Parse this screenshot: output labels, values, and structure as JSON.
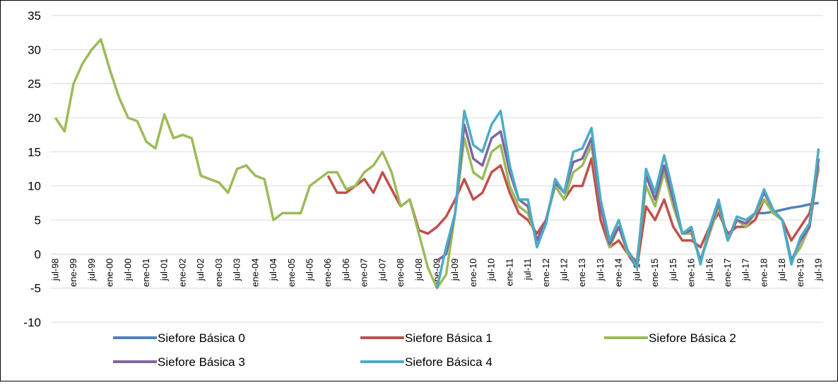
{
  "chart_data": {
    "type": "line",
    "categories": [
      "jul-98",
      null,
      "ene-99",
      null,
      "jul-99",
      null,
      "ene-00",
      null,
      "jul-00",
      null,
      "ene-01",
      null,
      "jul-01",
      null,
      "ene-02",
      null,
      "jul-02",
      null,
      "ene-03",
      null,
      "jul-03",
      null,
      "ene-04",
      null,
      "jul-04",
      null,
      "ene-05",
      null,
      "jul-05",
      null,
      "ene-06",
      null,
      "jul-06",
      null,
      "ene-07",
      null,
      "jul-07",
      null,
      "ene-08",
      null,
      "jul-08",
      null,
      "ene-09",
      null,
      "jul-09",
      null,
      "ene-10",
      null,
      "jul-10",
      null,
      "ene-11",
      null,
      "jul-11",
      null,
      "ene-12",
      null,
      "jul-12",
      null,
      "ene-13",
      null,
      "jul-13",
      null,
      "ene-14",
      null,
      "jul-14",
      null,
      "ene-15",
      null,
      "jul-15",
      null,
      "ene-16",
      null,
      "jul-16",
      null,
      "ene-17",
      null,
      "jul-17",
      null,
      "ene-18",
      null,
      "jul-18",
      null,
      "ene-19",
      null,
      "jul-19"
    ],
    "series": [
      {
        "name": "Siefore Básica 0",
        "color": "#4f81bd",
        "values": [
          null,
          null,
          null,
          null,
          null,
          null,
          null,
          null,
          null,
          null,
          null,
          null,
          null,
          null,
          null,
          null,
          null,
          null,
          null,
          null,
          null,
          null,
          null,
          null,
          null,
          null,
          null,
          null,
          null,
          null,
          null,
          null,
          null,
          null,
          null,
          null,
          null,
          null,
          null,
          null,
          null,
          null,
          null,
          null,
          null,
          null,
          null,
          null,
          null,
          null,
          null,
          null,
          null,
          null,
          null,
          null,
          null,
          null,
          null,
          null,
          null,
          null,
          null,
          null,
          null,
          null,
          null,
          null,
          null,
          null,
          null,
          null,
          null,
          null,
          null,
          null,
          null,
          6,
          6,
          6.2,
          6.5,
          6.8,
          7,
          7.3,
          7.5
        ]
      },
      {
        "name": "Siefore Básica 1",
        "color": "#c0504d",
        "values": [
          null,
          null,
          null,
          null,
          null,
          null,
          null,
          null,
          null,
          null,
          null,
          null,
          null,
          null,
          null,
          null,
          null,
          null,
          null,
          null,
          null,
          null,
          null,
          null,
          null,
          null,
          null,
          null,
          null,
          null,
          11.5,
          9,
          9,
          10,
          11,
          9,
          12,
          9.5,
          7,
          8,
          3.5,
          3,
          4,
          5.5,
          8,
          11,
          8,
          9,
          12,
          13,
          9,
          6,
          5,
          3,
          5,
          10,
          8,
          10,
          10,
          14,
          5,
          1,
          2,
          0,
          -2,
          7,
          5,
          8,
          4,
          2,
          2,
          1,
          4,
          6,
          3,
          4,
          4,
          5,
          8,
          6,
          5,
          2,
          4,
          6,
          12.5
        ]
      },
      {
        "name": "Siefore Básica 2",
        "color": "#9bbb59",
        "values": [
          20,
          18,
          25,
          28,
          30,
          31.5,
          27,
          23,
          20,
          19.5,
          16.5,
          15.5,
          20.5,
          17,
          17.5,
          17,
          11.5,
          11,
          10.5,
          9,
          12.5,
          13,
          11.5,
          11,
          5,
          6,
          6,
          6,
          10,
          11,
          12,
          12,
          9.5,
          10,
          12,
          13,
          15,
          12,
          7,
          8,
          3,
          -2,
          -5,
          -3,
          6,
          17,
          12,
          11,
          15,
          16,
          10,
          7,
          6,
          2,
          5,
          10,
          8,
          12,
          13,
          16,
          7,
          1,
          4,
          0,
          -1,
          10,
          7,
          12,
          7,
          3,
          3,
          -1,
          3,
          7,
          2,
          5,
          4,
          6,
          8,
          6,
          5,
          -1,
          1,
          4,
          13
        ]
      },
      {
        "name": "Siefore Básica 3",
        "color": "#8064a2",
        "values": [
          null,
          null,
          null,
          null,
          null,
          null,
          null,
          null,
          null,
          null,
          null,
          null,
          null,
          null,
          null,
          null,
          null,
          null,
          null,
          null,
          null,
          null,
          null,
          null,
          null,
          null,
          null,
          null,
          null,
          null,
          null,
          null,
          null,
          null,
          null,
          null,
          null,
          null,
          null,
          null,
          null,
          null,
          -1,
          0,
          6,
          19,
          14,
          13,
          17,
          18,
          12,
          8,
          7,
          2,
          5,
          10.5,
          9,
          13.5,
          14,
          17,
          7,
          1.5,
          4,
          0.5,
          -1.5,
          11.5,
          8,
          13,
          8,
          3,
          3.5,
          -1,
          3.5,
          7.5,
          2,
          5,
          4.5,
          6,
          9,
          6.5,
          5,
          -1,
          2,
          4,
          14
        ]
      },
      {
        "name": "Siefore Básica 4",
        "color": "#4bacc6",
        "values": [
          null,
          null,
          null,
          null,
          null,
          null,
          null,
          null,
          null,
          null,
          null,
          null,
          null,
          null,
          null,
          null,
          null,
          null,
          null,
          null,
          null,
          null,
          null,
          null,
          null,
          null,
          null,
          null,
          null,
          null,
          null,
          null,
          null,
          null,
          null,
          null,
          null,
          null,
          null,
          null,
          null,
          null,
          -5,
          1,
          6,
          21,
          16,
          15,
          19,
          21,
          13,
          8,
          8,
          1,
          4.5,
          11,
          9,
          15,
          15.5,
          18.5,
          8,
          2,
          5,
          0.5,
          -2,
          12.5,
          9,
          14.5,
          9,
          3,
          4,
          -1.5,
          4,
          8,
          2,
          5.5,
          5,
          6,
          9.5,
          6.5,
          5,
          -1.5,
          2.5,
          4.5,
          15.5
        ]
      }
    ],
    "ylim": [
      -10,
      35
    ],
    "yticks": [
      -10,
      -5,
      0,
      5,
      10,
      15,
      20,
      25,
      30,
      35
    ],
    "grid": true,
    "legend": "bottom"
  }
}
